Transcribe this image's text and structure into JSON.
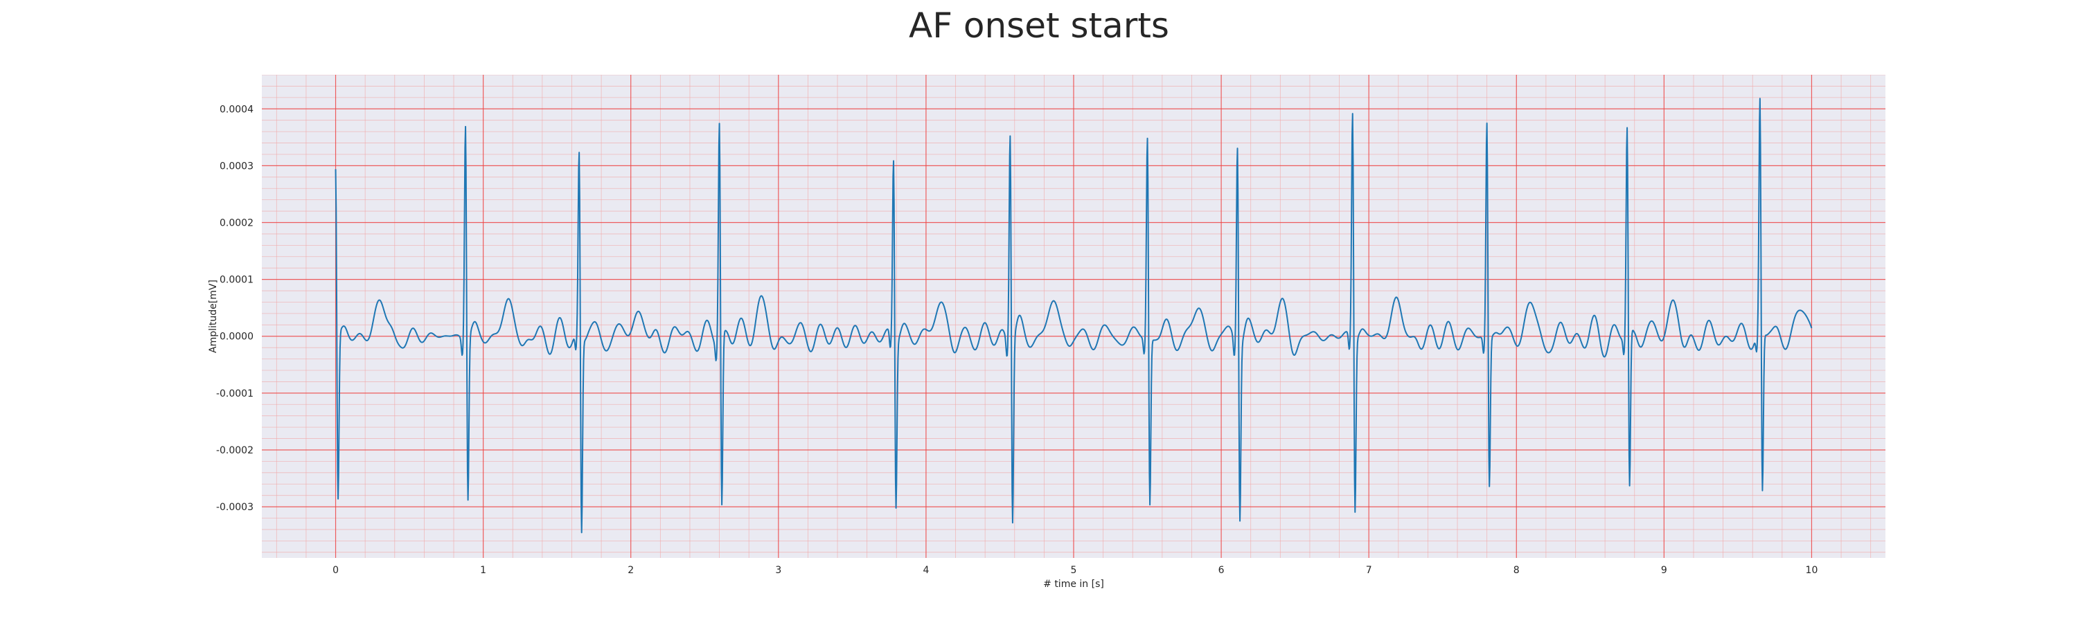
{
  "chart_data": {
    "type": "line",
    "title": "AF onset starts",
    "xlabel": "# time in [s]",
    "ylabel": "Amplitude[mV]",
    "xlim": [
      -0.5,
      10.5
    ],
    "ylim": [
      -0.00039,
      0.00046
    ],
    "x_ticks": [
      0,
      1,
      2,
      3,
      4,
      5,
      6,
      7,
      8,
      9,
      10
    ],
    "x_tick_labels": [
      "0",
      "1",
      "2",
      "3",
      "4",
      "5",
      "6",
      "7",
      "8",
      "9",
      "10"
    ],
    "y_ticks": [
      -0.0003,
      -0.0002,
      -0.0001,
      0.0,
      0.0001,
      0.0002,
      0.0003,
      0.0004
    ],
    "y_tick_labels": [
      "-0.0003",
      "-0.0002",
      "-0.0001",
      "0.0000",
      "0.0001",
      "0.0002",
      "0.0003",
      "0.0004"
    ],
    "grid": true,
    "grid_style": "ecg paper (major and minor red gridlines)",
    "sample_rate_hz": 300,
    "duration_s": 10,
    "series": [
      {
        "color": "#1f77b4",
        "r_peaks": [
          {
            "t": 0.0,
            "r": 0.000305,
            "s": -0.000305
          },
          {
            "t": 0.88,
            "r": 0.000392,
            "s": -0.0003
          },
          {
            "t": 1.65,
            "r": 0.000335,
            "s": -0.000357
          },
          {
            "t": 2.6,
            "r": 0.000396,
            "s": -0.000317
          },
          {
            "t": 3.78,
            "r": 0.000329,
            "s": -0.000304
          },
          {
            "t": 4.57,
            "r": 0.000387,
            "s": -0.000332
          },
          {
            "t": 5.5,
            "r": 0.000364,
            "s": -0.000309
          },
          {
            "t": 6.11,
            "r": 0.00037,
            "s": -0.000315
          },
          {
            "t": 6.89,
            "r": 0.00041,
            "s": -0.00032
          },
          {
            "t": 7.8,
            "r": 0.00039,
            "s": -0.000278
          },
          {
            "t": 8.75,
            "r": 0.000374,
            "s": -0.000291
          },
          {
            "t": 9.65,
            "r": 0.00042,
            "s": -0.000298
          }
        ],
        "t_waves": [
          {
            "t": 0.32,
            "a": 6.5e-05
          },
          {
            "t": 1.18,
            "a": 5.8e-05
          },
          {
            "t": 2.05,
            "a": 4.5e-05
          },
          {
            "t": 2.88,
            "a": 5.5e-05
          },
          {
            "t": 4.1,
            "a": 5.8e-05
          },
          {
            "t": 4.88,
            "a": 6e-05
          },
          {
            "t": 5.85,
            "a": 4e-05
          },
          {
            "t": 6.4,
            "a": 5e-05
          },
          {
            "t": 7.2,
            "a": 6.2e-05
          },
          {
            "t": 8.1,
            "a": 4.8e-05
          },
          {
            "t": 9.05,
            "a": 5.2e-05
          },
          {
            "t": 9.95,
            "a": 5e-05
          }
        ]
      }
    ]
  }
}
